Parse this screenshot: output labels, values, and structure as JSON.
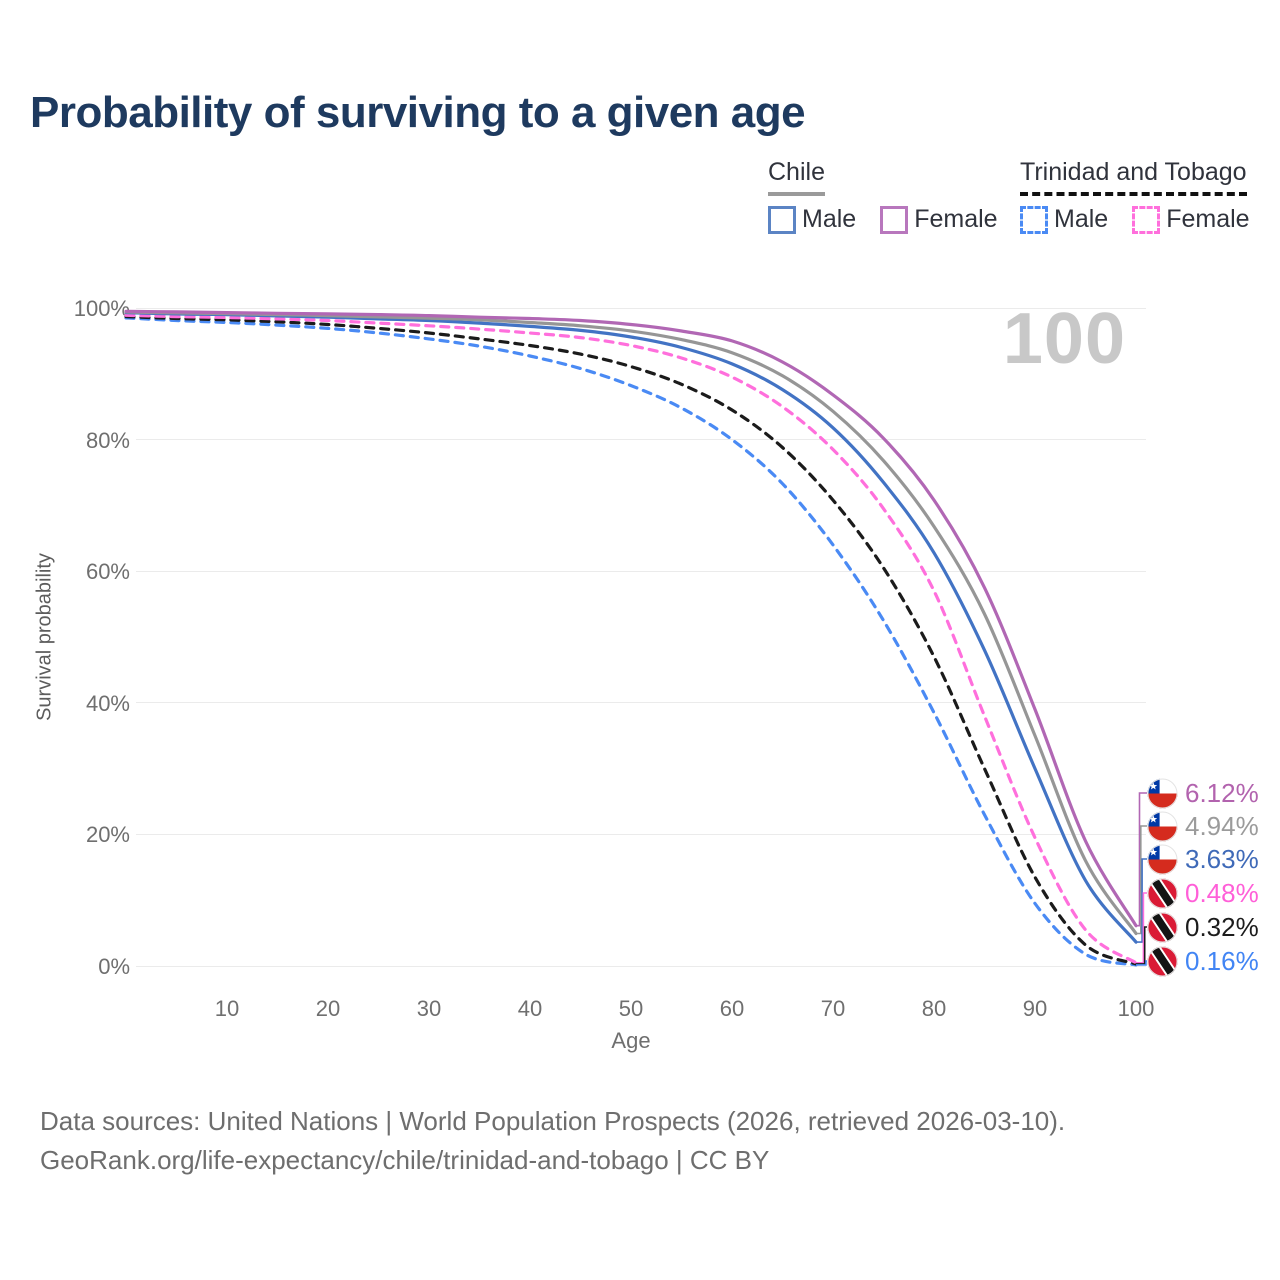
{
  "title": "Probability of surviving to a given age",
  "watermark": "100",
  "legend": {
    "groups": [
      {
        "name": "Chile",
        "underline_style": "solid-gray",
        "items": [
          {
            "label": "Male",
            "swatch_color": "#5b84c4",
            "swatch_style": "solid"
          },
          {
            "label": "Female",
            "swatch_color": "#b877bd",
            "swatch_style": "solid"
          }
        ]
      },
      {
        "name": "Trinidad and Tobago",
        "underline_style": "dashed-black",
        "items": [
          {
            "label": "Male",
            "swatch_color": "#4a8af4",
            "swatch_style": "dashed"
          },
          {
            "label": "Female",
            "swatch_color": "#ff6fdc",
            "swatch_style": "dashed"
          }
        ]
      }
    ]
  },
  "axes": {
    "y_title": "Survival probability",
    "x_title": "Age",
    "y_ticks": [
      "100%",
      "80%",
      "60%",
      "40%",
      "20%",
      "0%"
    ],
    "y_tick_values": [
      100,
      80,
      60,
      40,
      20,
      0
    ],
    "x_ticks": [
      "10",
      "20",
      "30",
      "40",
      "50",
      "60",
      "70",
      "80",
      "90",
      "100"
    ],
    "x_tick_values": [
      10,
      20,
      30,
      40,
      50,
      60,
      70,
      80,
      90,
      100
    ]
  },
  "chart_data": {
    "type": "line",
    "title": "Probability of surviving to a given age",
    "xlabel": "Age",
    "ylabel": "Survival probability",
    "xlim": [
      0,
      100
    ],
    "ylim_percent": [
      0,
      100
    ],
    "grid": "horizontal",
    "ages": [
      0,
      5,
      10,
      15,
      20,
      25,
      30,
      35,
      40,
      45,
      50,
      55,
      60,
      65,
      70,
      75,
      80,
      85,
      90,
      95,
      100
    ],
    "series": [
      {
        "name": "Chile Female",
        "color": "#b167b4",
        "label_color": "#b263ae",
        "dash": "solid",
        "end_label": "6.12%",
        "flag": "chile",
        "values": [
          99.5,
          99.4,
          99.3,
          99.2,
          99.1,
          99.0,
          98.85,
          98.6,
          98.4,
          98.1,
          97.5,
          96.5,
          95.0,
          91.8,
          86.8,
          80.2,
          70.8,
          57.5,
          39.0,
          19.0,
          6.12
        ]
      },
      {
        "name": "Chile (both sexes)",
        "color": "#969696",
        "label_color": "#9b9b9b",
        "dash": "solid",
        "end_label": "4.94%",
        "flag": "chile",
        "values": [
          99.4,
          99.25,
          99.15,
          99.0,
          98.85,
          98.65,
          98.45,
          98.2,
          97.8,
          97.3,
          96.5,
          95.2,
          93.2,
          89.7,
          84.3,
          76.8,
          66.8,
          53.5,
          35.0,
          16.0,
          4.94
        ]
      },
      {
        "name": "Chile Male",
        "color": "#4273c4",
        "label_color": "#3f6ab8",
        "dash": "solid",
        "end_label": "3.63%",
        "flag": "chile",
        "values": [
          99.3,
          99.1,
          99.0,
          98.8,
          98.6,
          98.35,
          98.1,
          97.7,
          97.2,
          96.6,
          95.6,
          94.0,
          91.5,
          87.6,
          81.8,
          73.5,
          62.8,
          48.0,
          30.0,
          13.0,
          3.63
        ]
      },
      {
        "name": "Trinidad and Tobago Female",
        "color": "#ff6fdc",
        "label_color": "#ff5fd8",
        "dash": "dashed",
        "end_label": "0.48%",
        "flag": "trinidad-and-tobago",
        "values": [
          98.9,
          98.7,
          98.55,
          98.35,
          98.1,
          97.7,
          97.3,
          96.8,
          96.2,
          95.5,
          94.3,
          92.4,
          89.5,
          85.0,
          78.5,
          69.5,
          57.0,
          38.0,
          19.5,
          5.5,
          0.48
        ]
      },
      {
        "name": "Trinidad and Tobago (both sexes)",
        "color": "#1b1b1b",
        "label_color": "#1c1c1c",
        "dash": "dashed",
        "end_label": "0.32%",
        "flag": "trinidad-and-tobago",
        "values": [
          98.7,
          98.4,
          98.2,
          97.9,
          97.5,
          96.9,
          96.2,
          95.3,
          94.3,
          93.0,
          91.1,
          88.4,
          84.5,
          78.8,
          70.8,
          60.5,
          47.0,
          30.0,
          13.5,
          3.2,
          0.32
        ]
      },
      {
        "name": "Trinidad and Tobago Male",
        "color": "#4a8af4",
        "label_color": "#4285f4",
        "dash": "dashed",
        "end_label": "0.16%",
        "flag": "trinidad-and-tobago",
        "values": [
          98.5,
          98.1,
          97.8,
          97.4,
          96.9,
          96.2,
          95.3,
          94.2,
          92.7,
          90.8,
          88.2,
          84.8,
          80.0,
          73.3,
          64.0,
          52.5,
          38.5,
          23.0,
          9.5,
          1.8,
          0.16
        ]
      }
    ]
  },
  "footer": {
    "line1": "Data sources: United Nations | World Population Prospects (2026, retrieved 2026-03-10).",
    "line2": "GeoRank.org/life-expectancy/chile/trinidad-and-tobago | CC BY"
  }
}
